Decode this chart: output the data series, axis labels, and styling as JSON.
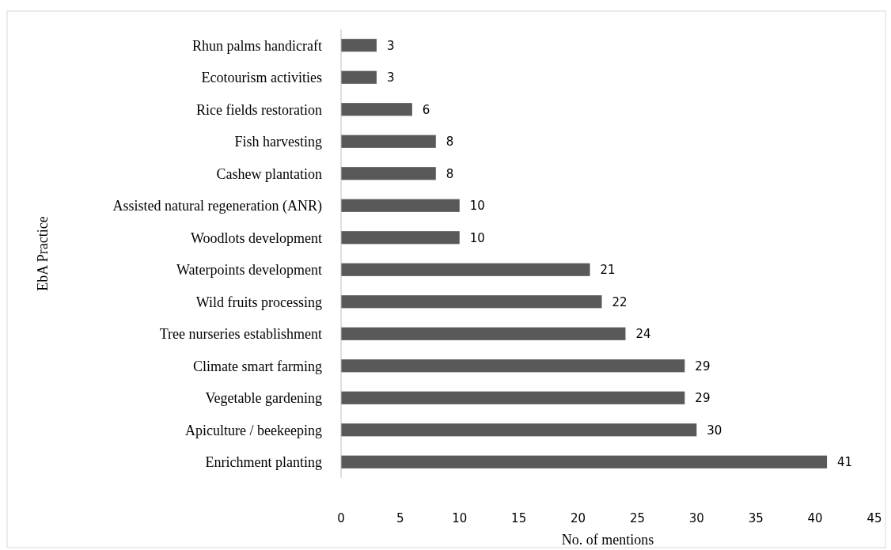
{
  "chart_data": {
    "type": "bar",
    "orientation": "horizontal",
    "xlabel": "No. of mentions",
    "ylabel": "EbA Practice",
    "categories": [
      "Rhun palms handicraft",
      "Ecotourism activities",
      "Rice fields restoration",
      "Fish harvesting",
      "Cashew plantation",
      "Assisted natural regeneration (ANR)",
      "Woodlots development",
      "Waterpoints development",
      "Wild fruits processing",
      "Tree nurseries establishment",
      "Climate smart farming",
      "Vegetable gardening",
      "Apiculture / beekeeping",
      "Enrichment planting"
    ],
    "values": [
      3,
      3,
      6,
      8,
      8,
      10,
      10,
      21,
      22,
      24,
      29,
      29,
      30,
      41
    ],
    "color": "#595959",
    "xlim": [
      0,
      45
    ],
    "xticks": [
      0,
      5,
      10,
      15,
      20,
      25,
      30,
      35,
      40,
      45
    ],
    "data_labels": true,
    "grid": false
  }
}
